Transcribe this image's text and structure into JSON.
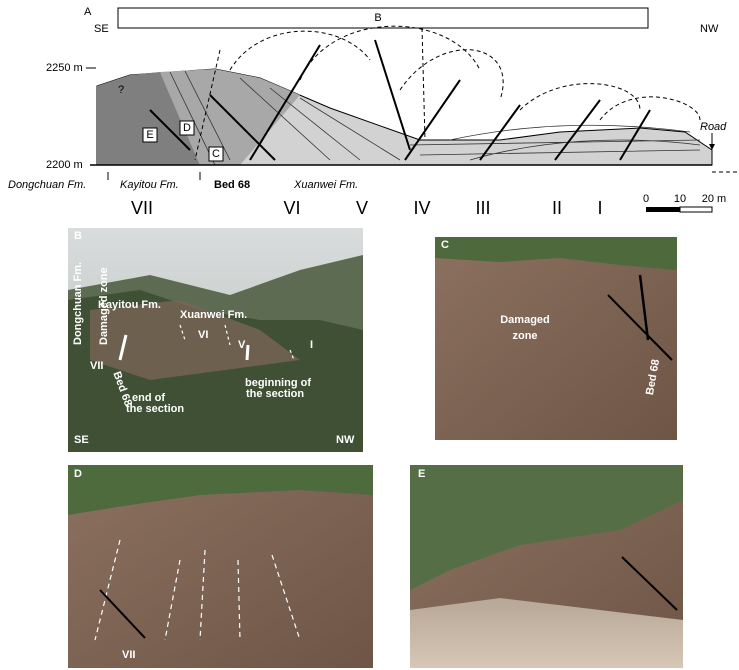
{
  "panel_a": {
    "label": "A",
    "box_label": "B",
    "left_direction": "SE",
    "right_direction": "NW",
    "elevations": [
      "2250 m",
      "2200 m"
    ],
    "question": "?",
    "boxes": [
      "E",
      "D",
      "C"
    ],
    "road": "Road",
    "formations": [
      "Dongchuan Fm.",
      "Kayitou Fm.",
      "Xuanwei Fm."
    ],
    "bed": "Bed 68",
    "sections": [
      "VII",
      "VI",
      "V",
      "IV",
      "III",
      "II",
      "I"
    ],
    "scale": [
      "0",
      "10",
      "20 m"
    ]
  },
  "panel_b": {
    "label": "B",
    "formations": [
      "Dongchuan Fm.",
      "Kayitou Fm.",
      "Xuanwei Fm."
    ],
    "zone": "Damaged zone",
    "sections": [
      "VII",
      "VI",
      "V",
      "I"
    ],
    "bed": "Bed 68",
    "end": [
      "end of",
      "the section"
    ],
    "beginning": [
      "beginning of",
      "the section"
    ],
    "left_direction": "SE",
    "right_direction": "NW"
  },
  "panel_c": {
    "label": "C",
    "zone": [
      "Damaged",
      "zone"
    ],
    "bed": "Bed 68"
  },
  "panel_d": {
    "label": "D",
    "section": "VII"
  },
  "panel_e": {
    "label": "E"
  }
}
